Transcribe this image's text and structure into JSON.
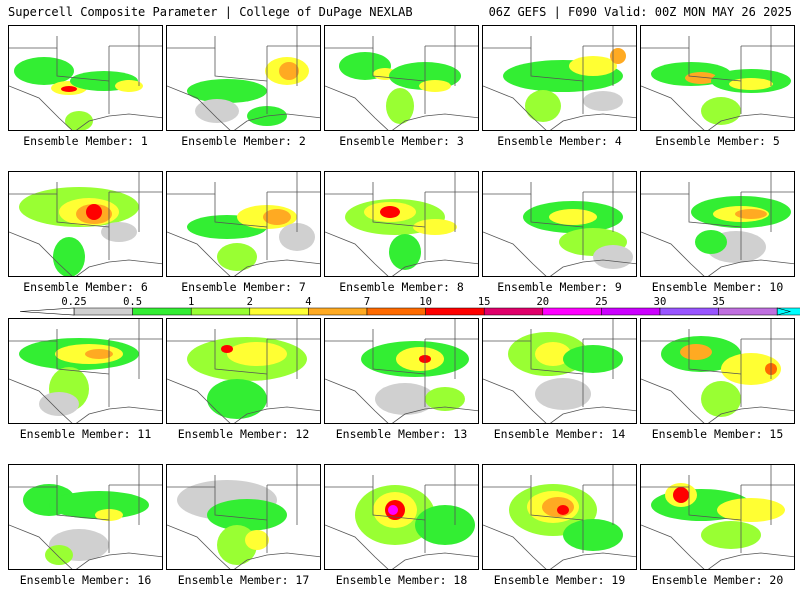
{
  "header": {
    "title": "Supercell Composite Parameter | College of DuPage NEXLAB",
    "run_info": "06Z GEFS | F090 Valid: 00Z MON MAY 26 2025"
  },
  "colorbar": {
    "levels": [
      "0.25",
      "0.5",
      "1",
      "2",
      "4",
      "7",
      "10",
      "15",
      "20",
      "25",
      "30",
      "35"
    ],
    "colors": [
      "#d0d0d0",
      "#33ee33",
      "#99ff33",
      "#ffff33",
      "#ffaa22",
      "#ff6a00",
      "#ff0000",
      "#e0006a",
      "#ff00ff",
      "#cc00ff",
      "#9955ff",
      "#c070e0",
      "#00ffff"
    ]
  },
  "colors": {
    "border": "#000000",
    "state_lines": "#555555"
  },
  "members": [
    {
      "label": "Ensemble Member: 1"
    },
    {
      "label": "Ensemble Member: 2"
    },
    {
      "label": "Ensemble Member: 3"
    },
    {
      "label": "Ensemble Member: 4"
    },
    {
      "label": "Ensemble Member: 5"
    },
    {
      "label": "Ensemble Member: 6"
    },
    {
      "label": "Ensemble Member: 7"
    },
    {
      "label": "Ensemble Member: 8"
    },
    {
      "label": "Ensemble Member: 9"
    },
    {
      "label": "Ensemble Member: 10"
    },
    {
      "label": "Ensemble Member: 11"
    },
    {
      "label": "Ensemble Member: 12"
    },
    {
      "label": "Ensemble Member: 13"
    },
    {
      "label": "Ensemble Member: 14"
    },
    {
      "label": "Ensemble Member: 15"
    },
    {
      "label": "Ensemble Member: 16"
    },
    {
      "label": "Ensemble Member: 17"
    },
    {
      "label": "Ensemble Member: 18"
    },
    {
      "label": "Ensemble Member: 19"
    },
    {
      "label": "Ensemble Member: 20"
    }
  ]
}
